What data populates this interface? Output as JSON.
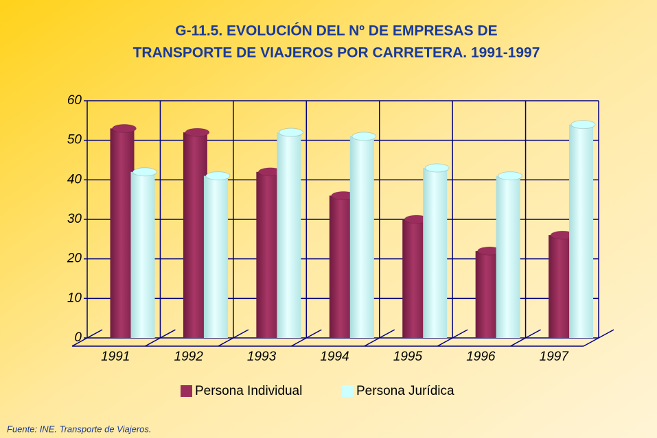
{
  "chart_data": {
    "type": "bar",
    "title": [
      "G-11.5.  EVOLUCIÓN DEL Nº DE EMPRESAS DE",
      "TRANSPORTE DE VIAJEROS POR CARRETERA. 1991-1997"
    ],
    "categories": [
      "1991",
      "1992",
      "1993",
      "1994",
      "1995",
      "1996",
      "1997"
    ],
    "series": [
      {
        "name": "Persona Individual",
        "color": "#9b2d5c",
        "values": [
          53,
          52,
          42,
          36,
          30,
          22,
          26
        ]
      },
      {
        "name": "Persona Jurídica",
        "color": "#ccffff",
        "values": [
          42,
          41,
          52,
          51,
          43,
          41,
          54
        ]
      }
    ],
    "ylim": [
      0,
      60
    ],
    "yticks": [
      0,
      10,
      20,
      30,
      40,
      50,
      60
    ],
    "grid": true,
    "source": "Fuente: INE. Transporte de Viajeros."
  }
}
